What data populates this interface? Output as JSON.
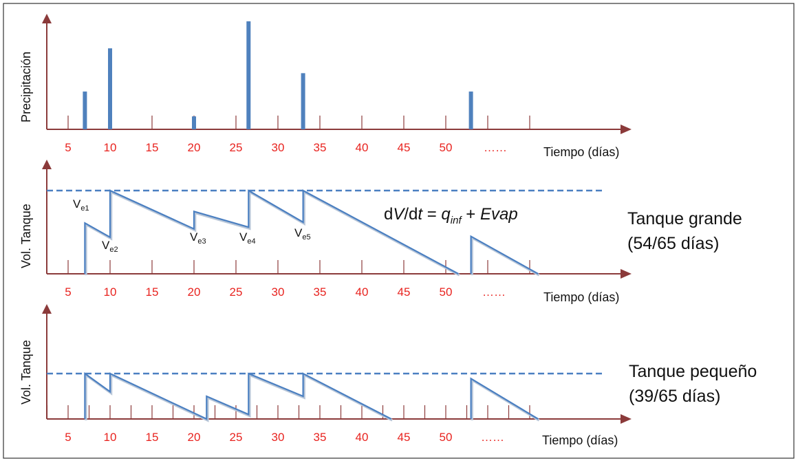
{
  "panels": {
    "precip": {
      "ylabel": "Precipitación",
      "xlabel": "Tiempo (días)",
      "tick_labels": [
        "5",
        "10",
        "15",
        "20",
        "25",
        "30",
        "35",
        "40",
        "45",
        "50"
      ],
      "ellipsis": "……"
    },
    "large": {
      "ylabel": "Vol. Tanque",
      "xlabel": "Tiempo (días)",
      "tick_labels": [
        "5",
        "10",
        "15",
        "20",
        "25",
        "30",
        "35",
        "40",
        "45",
        "50"
      ],
      "ellipsis": "……",
      "ve_labels": [
        {
          "base": "V",
          "sub": "e1"
        },
        {
          "base": "V",
          "sub": "e2"
        },
        {
          "base": "V",
          "sub": "e3"
        },
        {
          "base": "V",
          "sub": "e4"
        },
        {
          "base": "V",
          "sub": "e5"
        }
      ],
      "equation": {
        "prefix": "d",
        "V": "V",
        "slash": "/d",
        "t": "t",
        "eq": " = ",
        "q": "q",
        "q_sub": "inf",
        "plus": " + ",
        "evap": "Evap"
      },
      "title_line1": "Tanque grande",
      "title_line2": "(54/65 días)"
    },
    "small": {
      "ylabel": "Vol. Tanque",
      "xlabel": "Tiempo (días)",
      "tick_labels": [
        "5",
        "10",
        "15",
        "20",
        "25",
        "30",
        "35",
        "40",
        "45",
        "50"
      ],
      "ellipsis": "……",
      "title_line1": "Tanque pequeño",
      "title_line2": "(39/65 días)"
    }
  },
  "chart_data": {
    "precipitation": {
      "type": "bar",
      "x_days": [
        7,
        10,
        20,
        26.5,
        33,
        53
      ],
      "relative_heights": [
        0.35,
        0.75,
        0.12,
        1.0,
        0.52,
        0.35
      ]
    },
    "large_tank": {
      "type": "line",
      "relative_full_level": 1.0,
      "series": [
        {
          "x": [
            7,
            7,
            10,
            10,
            20,
            20,
            26.5,
            26.5,
            33,
            33,
            51.5
          ],
          "y": [
            0,
            0.61,
            0.44,
            1.0,
            0.54,
            0.75,
            0.56,
            1.0,
            0.62,
            1.0,
            0
          ]
        },
        {
          "x": [
            53,
            53,
            61
          ],
          "y": [
            0,
            0.45,
            0
          ]
        }
      ]
    },
    "small_tank": {
      "type": "line",
      "relative_full_level": 1.0,
      "series": [
        {
          "x": [
            7,
            7,
            10,
            10,
            21.5,
            21.5,
            26.5,
            26.5,
            33,
            33,
            43.5
          ],
          "y": [
            0,
            1.0,
            0.6,
            1.0,
            0,
            0.5,
            0.1,
            1.0,
            0.5,
            1.0,
            0
          ]
        },
        {
          "x": [
            53,
            53,
            61
          ],
          "y": [
            0,
            0.89,
            0
          ]
        }
      ]
    }
  }
}
